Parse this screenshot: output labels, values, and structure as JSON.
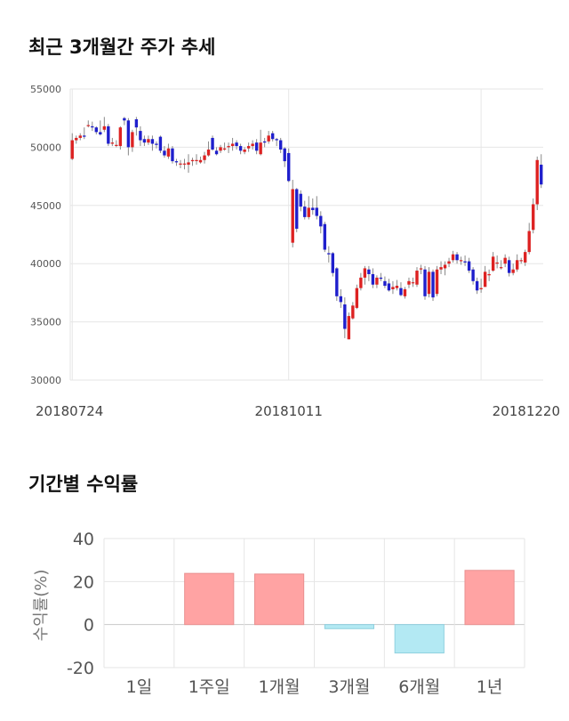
{
  "sections": {
    "price_title": "최근 3개월간 주가 추세",
    "return_title": "기간별 수익률"
  },
  "chart_data": [
    {
      "type": "candlestick",
      "title": "최근 3개월간 주가 추세",
      "y_ticks": [
        30000,
        35000,
        40000,
        45000,
        50000,
        55000
      ],
      "ylim": [
        30000,
        55000
      ],
      "x_labels": [
        {
          "index": 0,
          "label": "20180724"
        },
        {
          "index": 54,
          "label": "20181011"
        },
        {
          "index": 102,
          "label": "20181220"
        }
      ],
      "colors": {
        "up": "#dd2222",
        "down": "#1f1fcc",
        "wick": "#888888",
        "grid": "#e6e6e6"
      },
      "candles": [
        [
          49000,
          50600,
          51200,
          48900
        ],
        [
          50600,
          50800,
          51000,
          50300
        ],
        [
          50800,
          51000,
          51200,
          50600
        ],
        [
          51000,
          50900,
          51700,
          50700
        ],
        [
          51900,
          51900,
          52300,
          51700
        ],
        [
          51800,
          51700,
          52200,
          51400
        ],
        [
          51700,
          51300,
          51800,
          51100
        ],
        [
          51300,
          51100,
          52300,
          51000
        ],
        [
          51500,
          51800,
          52600,
          51300
        ],
        [
          51800,
          50300,
          52000,
          50100
        ],
        [
          50300,
          50400,
          50800,
          50100
        ],
        [
          50200,
          50200,
          50600,
          50000
        ],
        [
          50100,
          51700,
          51800,
          49800
        ],
        [
          52500,
          52300,
          52600,
          51900
        ],
        [
          52300,
          50000,
          52500,
          49300
        ],
        [
          50000,
          51300,
          51500,
          49600
        ],
        [
          52400,
          51700,
          52600,
          51000
        ],
        [
          51400,
          50600,
          51800,
          50100
        ],
        [
          50700,
          50400,
          51000,
          50100
        ],
        [
          50400,
          50700,
          51000,
          50200
        ],
        [
          50700,
          50300,
          51000,
          49700
        ],
        [
          50300,
          50200,
          50500,
          49900
        ],
        [
          50900,
          49700,
          51000,
          49500
        ],
        [
          49700,
          49300,
          50100,
          49100
        ],
        [
          49200,
          49900,
          50300,
          49000
        ],
        [
          49900,
          48800,
          50100,
          48600
        ],
        [
          48800,
          48700,
          49000,
          48400
        ],
        [
          48600,
          48600,
          48900,
          48200
        ],
        [
          48600,
          48600,
          49000,
          48100
        ],
        [
          48500,
          48700,
          49400,
          47800
        ],
        [
          48800,
          48900,
          49100,
          48400
        ],
        [
          48900,
          48900,
          49400,
          48500
        ],
        [
          48700,
          48900,
          49200,
          48600
        ],
        [
          48900,
          49300,
          49600,
          48600
        ],
        [
          49300,
          49800,
          50500,
          49200
        ],
        [
          50800,
          49800,
          51000,
          49700
        ],
        [
          49700,
          49400,
          50000,
          49300
        ],
        [
          49700,
          50000,
          50200,
          49500
        ],
        [
          49800,
          49900,
          50400,
          49700
        ],
        [
          50000,
          50100,
          50400,
          49500
        ],
        [
          50100,
          50300,
          50800,
          49700
        ],
        [
          50400,
          50100,
          50600,
          49800
        ],
        [
          50100,
          49700,
          50300,
          49400
        ],
        [
          49600,
          49800,
          50000,
          49400
        ],
        [
          49900,
          50100,
          50400,
          49600
        ],
        [
          50100,
          50300,
          50600,
          49800
        ],
        [
          50400,
          49700,
          50700,
          49400
        ],
        [
          49400,
          50400,
          51500,
          49300
        ],
        [
          50500,
          50400,
          50800,
          50000
        ],
        [
          50500,
          51000,
          51400,
          50300
        ],
        [
          51200,
          50700,
          51400,
          50500
        ],
        [
          50700,
          50600,
          50800,
          50100
        ],
        [
          50600,
          49800,
          50800,
          49500
        ],
        [
          49900,
          48800,
          50000,
          48300
        ],
        [
          49500,
          47100,
          49900,
          47000
        ],
        [
          41800,
          46400,
          47200,
          41400
        ],
        [
          46400,
          43000,
          46500,
          42700
        ],
        [
          46000,
          44900,
          46300,
          44500
        ],
        [
          44900,
          44000,
          45400,
          43800
        ],
        [
          44000,
          44800,
          45800,
          43800
        ],
        [
          44800,
          44600,
          45600,
          44200
        ],
        [
          44800,
          44100,
          45800,
          43800
        ],
        [
          44100,
          43200,
          44500,
          42600
        ],
        [
          43400,
          41200,
          43600,
          41000
        ],
        [
          40900,
          40800,
          41500,
          40100
        ],
        [
          40900,
          39200,
          41000,
          38900
        ],
        [
          39600,
          37200,
          39700,
          36800
        ],
        [
          37200,
          36700,
          37800,
          36200
        ],
        [
          36500,
          34400,
          37100,
          33600
        ],
        [
          33500,
          35500,
          35800,
          33500
        ],
        [
          35300,
          36400,
          36700,
          35200
        ],
        [
          36200,
          37900,
          38200,
          36100
        ],
        [
          37900,
          38800,
          39200,
          37700
        ],
        [
          38800,
          39600,
          39800,
          38200
        ],
        [
          39500,
          39100,
          39800,
          38500
        ],
        [
          39100,
          38200,
          39600,
          37900
        ],
        [
          38200,
          38800,
          39000,
          37900
        ],
        [
          38800,
          38700,
          39200,
          38500
        ],
        [
          38500,
          38100,
          38900,
          37900
        ],
        [
          38300,
          37700,
          38700,
          37600
        ],
        [
          37800,
          38000,
          38500,
          37400
        ],
        [
          37900,
          38100,
          38600,
          37700
        ],
        [
          37900,
          37300,
          38400,
          37200
        ],
        [
          37200,
          37800,
          38000,
          37000
        ],
        [
          38200,
          38500,
          38800,
          37900
        ],
        [
          38400,
          38400,
          38800,
          38000
        ],
        [
          38200,
          39400,
          39700,
          38000
        ],
        [
          39500,
          39600,
          39900,
          39100
        ],
        [
          39500,
          37200,
          39800,
          36900
        ],
        [
          37400,
          39300,
          39700,
          37100
        ],
        [
          39300,
          37100,
          39500,
          36800
        ],
        [
          37400,
          39500,
          39800,
          37200
        ],
        [
          39500,
          39700,
          40200,
          39100
        ],
        [
          39600,
          39900,
          40200,
          39000
        ],
        [
          40000,
          40200,
          40500,
          39700
        ],
        [
          40300,
          40800,
          41100,
          40100
        ],
        [
          40800,
          40300,
          41000,
          40000
        ],
        [
          40300,
          40300,
          40600,
          39900
        ],
        [
          40200,
          40100,
          40700,
          39800
        ],
        [
          40200,
          39400,
          40500,
          39200
        ],
        [
          39500,
          38500,
          39700,
          38200
        ],
        [
          38500,
          37700,
          38800,
          37400
        ],
        [
          37800,
          37900,
          38700,
          37500
        ],
        [
          38000,
          39300,
          39800,
          38200
        ],
        [
          39000,
          39100,
          39500,
          38500
        ],
        [
          39400,
          40600,
          41000,
          39300
        ],
        [
          40000,
          40100,
          40700,
          39600
        ],
        [
          39700,
          39700,
          40300,
          39500
        ],
        [
          40000,
          40500,
          40800,
          39700
        ],
        [
          40300,
          39200,
          40600,
          38900
        ],
        [
          39200,
          39500,
          40000,
          39000
        ],
        [
          39500,
          40300,
          40800,
          39300
        ],
        [
          40300,
          40300,
          40500,
          40000
        ],
        [
          40100,
          41000,
          41200,
          39800
        ],
        [
          41000,
          42800,
          43500,
          40800
        ],
        [
          42900,
          45100,
          45600,
          42600
        ],
        [
          45100,
          48900,
          49200,
          44600
        ],
        [
          48500,
          46800,
          49400,
          46500
        ]
      ]
    },
    {
      "type": "bar",
      "title": "기간별 수익률",
      "ylabel": "수익률(%)",
      "categories": [
        "1일",
        "1주일",
        "1개월",
        "3개월",
        "6개월",
        "1년"
      ],
      "values": [
        0,
        23.8,
        23.5,
        -1.9,
        -13.2,
        25.2
      ],
      "ylim": [
        -20,
        40
      ],
      "y_ticks": [
        -20,
        0,
        20,
        40
      ],
      "colors": {
        "positive": "#ffa3a3",
        "positive_stroke": "#e89090",
        "negative": "#b3e9f3",
        "negative_stroke": "#8fd0df"
      }
    }
  ]
}
